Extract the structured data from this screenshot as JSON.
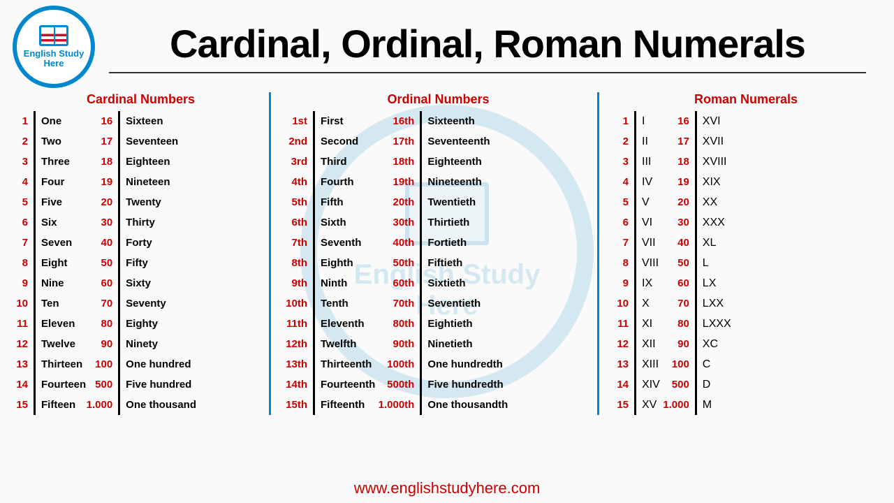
{
  "page": {
    "title": "Cardinal, Ordinal, Roman Numerals",
    "footer_url": "www.englishstudyhere.com",
    "logo_line1": "English Study",
    "logo_line2": "Here",
    "watermark_line1": "English Study",
    "watermark_line2": "Here",
    "colors": {
      "accent_blue": "#0088cc",
      "accent_red": "#cc0000",
      "text": "#000000",
      "background": "#fafafa"
    }
  },
  "cardinal": {
    "title": "Cardinal Numbers",
    "left": [
      [
        "1",
        "One"
      ],
      [
        "2",
        "Two"
      ],
      [
        "3",
        "Three"
      ],
      [
        "4",
        "Four"
      ],
      [
        "5",
        "Five"
      ],
      [
        "6",
        "Six"
      ],
      [
        "7",
        "Seven"
      ],
      [
        "8",
        "Eight"
      ],
      [
        "9",
        "Nine"
      ],
      [
        "10",
        "Ten"
      ],
      [
        "11",
        "Eleven"
      ],
      [
        "12",
        "Twelve"
      ],
      [
        "13",
        "Thirteen"
      ],
      [
        "14",
        "Fourteen"
      ],
      [
        "15",
        "Fifteen"
      ]
    ],
    "right": [
      [
        "16",
        "Sixteen"
      ],
      [
        "17",
        "Seventeen"
      ],
      [
        "18",
        "Eighteen"
      ],
      [
        "19",
        "Nineteen"
      ],
      [
        "20",
        "Twenty"
      ],
      [
        "30",
        "Thirty"
      ],
      [
        "40",
        "Forty"
      ],
      [
        "50",
        "Fifty"
      ],
      [
        "60",
        "Sixty"
      ],
      [
        "70",
        "Seventy"
      ],
      [
        "80",
        "Eighty"
      ],
      [
        "90",
        "Ninety"
      ],
      [
        "100",
        "One hundred"
      ],
      [
        "500",
        "Five hundred"
      ],
      [
        "1.000",
        "One thousand"
      ]
    ]
  },
  "ordinal": {
    "title": "Ordinal Numbers",
    "left": [
      [
        "1st",
        "First"
      ],
      [
        "2nd",
        "Second"
      ],
      [
        "3rd",
        "Third"
      ],
      [
        "4th",
        "Fourth"
      ],
      [
        "5th",
        "Fifth"
      ],
      [
        "6th",
        "Sixth"
      ],
      [
        "7th",
        "Seventh"
      ],
      [
        "8th",
        "Eighth"
      ],
      [
        "9th",
        "Ninth"
      ],
      [
        "10th",
        "Tenth"
      ],
      [
        "11th",
        "Eleventh"
      ],
      [
        "12th",
        "Twelfth"
      ],
      [
        "13th",
        "Thirteenth"
      ],
      [
        "14th",
        "Fourteenth"
      ],
      [
        "15th",
        "Fifteenth"
      ]
    ],
    "right": [
      [
        "16th",
        "Sixteenth"
      ],
      [
        "17th",
        "Seventeenth"
      ],
      [
        "18th",
        "Eighteenth"
      ],
      [
        "19th",
        "Nineteenth"
      ],
      [
        "20th",
        "Twentieth"
      ],
      [
        "30th",
        "Thirtieth"
      ],
      [
        "40th",
        "Fortieth"
      ],
      [
        "50th",
        "Fiftieth"
      ],
      [
        "60th",
        "Sixtieth"
      ],
      [
        "70th",
        "Seventieth"
      ],
      [
        "80th",
        "Eightieth"
      ],
      [
        "90th",
        "Ninetieth"
      ],
      [
        "100th",
        "One hundredth"
      ],
      [
        "500th",
        "Five hundredth"
      ],
      [
        "1.000th",
        "One thousandth"
      ]
    ]
  },
  "roman": {
    "title": "Roman Numerals",
    "left": [
      [
        "1",
        "I"
      ],
      [
        "2",
        "II"
      ],
      [
        "3",
        "III"
      ],
      [
        "4",
        "IV"
      ],
      [
        "5",
        "V"
      ],
      [
        "6",
        "VI"
      ],
      [
        "7",
        "VII"
      ],
      [
        "8",
        "VIII"
      ],
      [
        "9",
        "IX"
      ],
      [
        "10",
        "X"
      ],
      [
        "11",
        "XI"
      ],
      [
        "12",
        "XII"
      ],
      [
        "13",
        "XIII"
      ],
      [
        "14",
        "XIV"
      ],
      [
        "15",
        "XV"
      ]
    ],
    "right": [
      [
        "16",
        "XVI"
      ],
      [
        "17",
        "XVII"
      ],
      [
        "18",
        "XVIII"
      ],
      [
        "19",
        "XIX"
      ],
      [
        "20",
        "XX"
      ],
      [
        "30",
        "XXX"
      ],
      [
        "40",
        "XL"
      ],
      [
        "50",
        "L"
      ],
      [
        "60",
        "LX"
      ],
      [
        "70",
        "LXX"
      ],
      [
        "80",
        "LXXX"
      ],
      [
        "90",
        "XC"
      ],
      [
        "100",
        "C"
      ],
      [
        "500",
        "D"
      ],
      [
        "1.000",
        "M"
      ]
    ]
  }
}
